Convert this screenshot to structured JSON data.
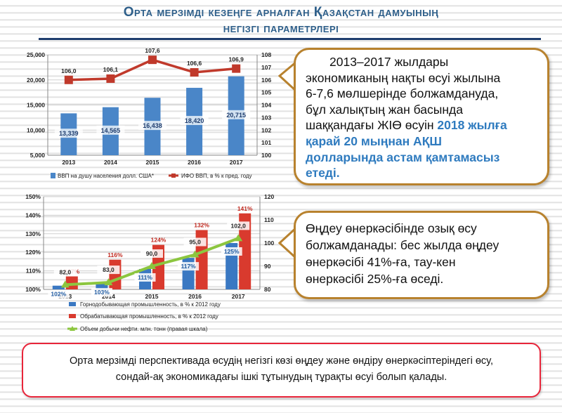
{
  "header": {
    "title_line1": "Орта мерзімді кезеңге арналған Қазақстан дамуының",
    "title_line2": "негізгі  параметрлері"
  },
  "chart_data": [
    {
      "type": "bar",
      "categories": [
        "2013",
        "2014",
        "2015",
        "2016",
        "2017"
      ],
      "series": [
        {
          "name": "ВВП на душу населения долл. США*",
          "kind": "bar",
          "axis": "left",
          "values": [
            13339,
            14565,
            16438,
            18420,
            20715
          ],
          "labels": [
            "13,339",
            "14,565",
            "16,438",
            "18,420",
            "20,715"
          ],
          "color": "#4a86c8"
        },
        {
          "name": "ИФО ВВП, в % к пред. году",
          "kind": "line",
          "axis": "right",
          "values": [
            106.0,
            106.1,
            107.6,
            106.6,
            106.9
          ],
          "labels": [
            "106,0",
            "106,1",
            "107,6",
            "106,6",
            "106,9"
          ],
          "color": "#c0392b"
        }
      ],
      "ylim": [
        5000,
        25000
      ],
      "yticks": [
        "5,000",
        "10,000",
        "15,000",
        "20,000",
        "25,000"
      ],
      "y2lim": [
        100,
        108
      ],
      "y2ticks": [
        "100",
        "101",
        "102",
        "103",
        "104",
        "105",
        "106",
        "107",
        "108"
      ]
    },
    {
      "type": "bar",
      "categories": [
        "2013",
        "2014",
        "2015",
        "2016",
        "2017"
      ],
      "series": [
        {
          "name": "Горнодобывающая промышленность, в % к 2012 году",
          "kind": "bar",
          "axis": "left",
          "values": [
            102,
            103,
            111,
            117,
            125
          ],
          "labels": [
            "102%",
            "103%",
            "111%",
            "117%",
            "125%"
          ],
          "color": "#3a78c2"
        },
        {
          "name": "Обрабатывающая промышленность,  в % к 2012 году",
          "kind": "bar",
          "axis": "left",
          "values": [
            107,
            116,
            124,
            132,
            141
          ],
          "labels": [
            "107%",
            "116%",
            "124%",
            "132%",
            "141%"
          ],
          "color": "#d93a2e"
        },
        {
          "name": "Объем добычи нефти. млн. тонн (правая шкала)",
          "kind": "line",
          "axis": "right",
          "values": [
            82.0,
            83.0,
            90.0,
            95.0,
            102.0
          ],
          "labels": [
            "82,0",
            "83,0",
            "90,0",
            "95,0",
            "102,0"
          ],
          "color": "#8cc63f"
        }
      ],
      "ylim": [
        100,
        150
      ],
      "yticks": [
        "100%",
        "110%",
        "120%",
        "130%",
        "140%",
        "150%"
      ],
      "y2lim": [
        80,
        120
      ],
      "y2ticks": [
        "80",
        "90",
        "100",
        "110",
        "120"
      ]
    }
  ],
  "bubble1": {
    "line1": "2013–2017 жылдары",
    "line2": "экономиканың нақты өсуі жылына",
    "line3": "6-7,6  мөлшерінде болжамдануда,",
    "line4": "бұл халықтың жан басында",
    "line5a": "шаққандағы ЖІӨ өсуін ",
    "line5b": "2018 жылға",
    "line6": "қарай 20 мыңнан АҚШ",
    "line7": "долларында астам қамтамасыз",
    "line8": "етеді."
  },
  "bubble2": {
    "line1": "Өңдеу өнеркәсібінде озық өсу",
    "line2": "болжамданады: бес жылда өңдеу",
    "line3": "өнеркәсібі 41%-ға, тау-кен",
    "line4": "өнеркәсібі 25%-ға өседі."
  },
  "footer_note": {
    "line1": "Орта мерзімді перспективада өсудің негізгі көзі өңдеу және өндіру өнеркәсіптеріндегі өсу,",
    "line2": "сондай-ақ экономикадағы ішкі тұтынудың тұрақты өсуі болып қалады."
  },
  "colors": {
    "title": "#2e5f8a",
    "bubble_border": "#b8822e",
    "note_border": "#e8253a",
    "highlight": "#2f7bbf"
  }
}
